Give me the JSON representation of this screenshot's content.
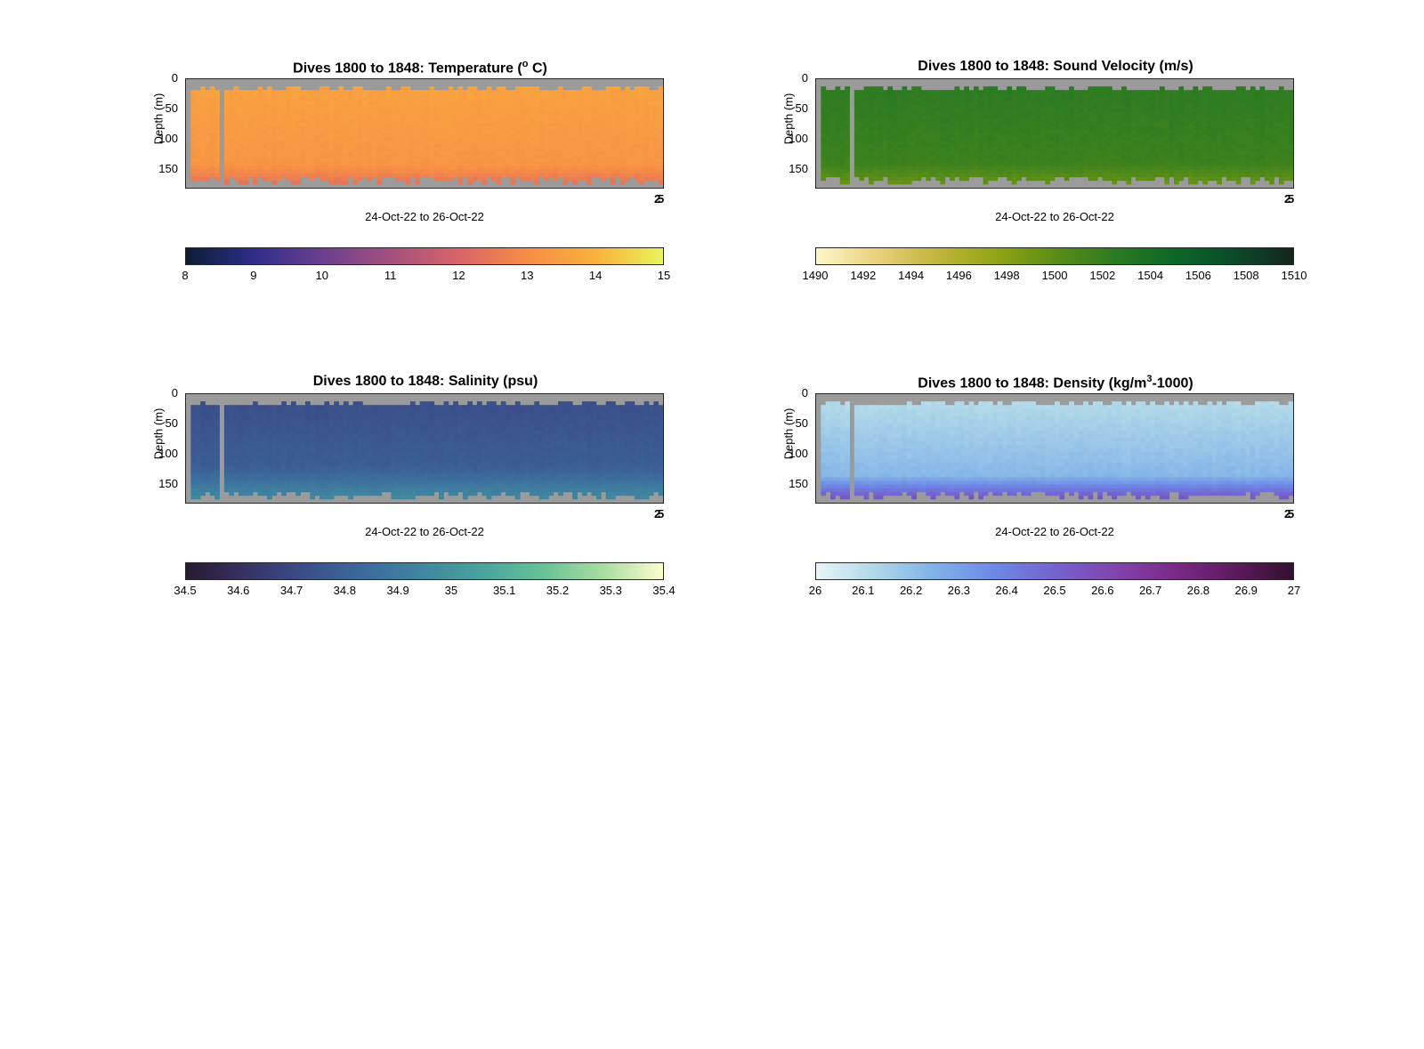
{
  "chart_data": [
    {
      "type": "heatmap",
      "title_main": "Dives 1800 to 1848: Temperature (",
      "title_sup": "o",
      "title_end": " C)",
      "ylabel": "Depth (m)",
      "yticks": [
        "0",
        "50",
        "100",
        "150"
      ],
      "ylim": [
        0,
        180
      ],
      "xlabel": "24-Oct-22 to 26-Oct-22",
      "xtick_labels": [
        "2",
        "5"
      ],
      "colorbar_ticks": [
        "8",
        "9",
        "10",
        "11",
        "12",
        "13",
        "14",
        "15"
      ],
      "clim": [
        8,
        15
      ],
      "colormap": [
        "#0b1e36",
        "#2f2e8a",
        "#6b3f8e",
        "#a4507f",
        "#d86467",
        "#f78d46",
        "#f9b13c",
        "#e9f35a"
      ],
      "surface_value": 13.6,
      "deep_value": 12.2,
      "deep_start_depth": 140
    },
    {
      "type": "heatmap",
      "title_main": "Dives 1800 to 1848: Sound Velocity (m/s)",
      "title_sup": "",
      "title_end": "",
      "ylabel": "Depth (m)",
      "yticks": [
        "0",
        "50",
        "100",
        "150"
      ],
      "ylim": [
        0,
        180
      ],
      "xlabel": "24-Oct-22 to 26-Oct-22",
      "xtick_labels": [
        "2",
        "5"
      ],
      "colorbar_ticks": [
        "1490",
        "1492",
        "1494",
        "1496",
        "1498",
        "1500",
        "1502",
        "1504",
        "1506",
        "1508",
        "1510"
      ],
      "clim": [
        1490,
        1510
      ],
      "colormap": [
        "#fdf7c7",
        "#ead27e",
        "#c3b53e",
        "#93a513",
        "#5b8e17",
        "#2d7b22",
        "#0c6727",
        "#0b4b2a",
        "#14261c"
      ],
      "surface_value": 1502.6,
      "deep_value": 1499.0,
      "deep_start_depth": 140
    },
    {
      "type": "heatmap",
      "title_main": "Dives 1800 to 1848: Salinity (psu)",
      "title_sup": "",
      "title_end": "",
      "ylabel": "Depth (m)",
      "yticks": [
        "0",
        "50",
        "100",
        "150"
      ],
      "ylim": [
        0,
        180
      ],
      "xlabel": "24-Oct-22 to 26-Oct-22",
      "xtick_labels": [
        "2",
        "5"
      ],
      "colorbar_ticks": [
        "34.5",
        "34.6",
        "34.7",
        "34.8",
        "34.9",
        "35",
        "35.1",
        "35.2",
        "35.3",
        "35.4"
      ],
      "clim": [
        34.5,
        35.4
      ],
      "colormap": [
        "#2a1a31",
        "#363264",
        "#3b4f8a",
        "#3c6b9d",
        "#40879f",
        "#48a59d",
        "#68c297",
        "#a9dda1",
        "#fdfccc"
      ],
      "surface_value": 34.72,
      "deep_value": 34.98,
      "deep_start_depth": 120
    },
    {
      "type": "heatmap",
      "title_main": "Dives 1800 to 1848: Density (kg/m",
      "title_sup": "3",
      "title_end": "-1000)",
      "ylabel": "Depth (m)",
      "yticks": [
        "0",
        "50",
        "100",
        "150"
      ],
      "ylim": [
        0,
        180
      ],
      "xlabel": "24-Oct-22 to 26-Oct-22",
      "xtick_labels": [
        "2",
        "5"
      ],
      "colorbar_ticks": [
        "26",
        "26.1",
        "26.2",
        "26.3",
        "26.4",
        "26.5",
        "26.6",
        "26.7",
        "26.8",
        "26.9",
        "27"
      ],
      "clim": [
        26,
        27
      ],
      "colormap": [
        "#e9f6f7",
        "#aed7e8",
        "#80b1e8",
        "#6d88e6",
        "#7463cf",
        "#8244ae",
        "#7c2a88",
        "#5d1b5e",
        "#33102f"
      ],
      "surface_value": 26.1,
      "deep_value": 26.62,
      "deep_start_depth": 135
    }
  ]
}
